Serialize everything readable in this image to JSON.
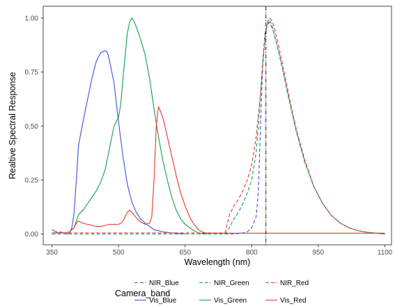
{
  "chart_data": {
    "type": "line",
    "title": "",
    "xlabel": "Wavelength (nm)",
    "ylabel": "Realtive Spectral Response",
    "xlim": [
      350,
      1100
    ],
    "ylim": [
      0,
      1.0
    ],
    "x_ticks": [
      350,
      500,
      650,
      800,
      950,
      1100
    ],
    "x_tick_labels": [
      "350",
      "500",
      "650",
      "800",
      "950",
      "1100"
    ],
    "y_ticks": [
      0,
      0.25,
      0.5,
      0.75,
      1.0
    ],
    "y_tick_labels": [
      "0.00",
      "0.25",
      "0.50",
      "0.75",
      "1.00"
    ],
    "grid": false,
    "vline": {
      "x": 832,
      "style": "dashdot",
      "color": "#000000"
    },
    "legend": {
      "title": "Camera_band",
      "position": "bottom"
    },
    "series": [
      {
        "name": "NIR_Blue",
        "color": "#3b4fe0",
        "linetype": "dashed",
        "x": [
          350,
          700,
          760,
          780,
          790,
          800,
          810,
          815,
          820,
          825,
          830,
          835,
          840,
          845,
          850,
          860,
          870,
          880,
          890,
          900,
          920,
          940,
          960,
          980,
          1000,
          1020,
          1040,
          1060,
          1080,
          1100
        ],
        "y": [
          0,
          0,
          0,
          0.005,
          0.01,
          0.03,
          0.08,
          0.2,
          0.5,
          0.8,
          0.93,
          0.97,
          0.98,
          0.96,
          0.93,
          0.85,
          0.76,
          0.66,
          0.57,
          0.48,
          0.33,
          0.22,
          0.14,
          0.085,
          0.05,
          0.028,
          0.015,
          0.008,
          0.004,
          0
        ]
      },
      {
        "name": "NIR_Green",
        "color": "#0e9d4f",
        "linetype": "dashed",
        "x": [
          350,
          740,
          750,
          760,
          770,
          780,
          790,
          800,
          810,
          815,
          820,
          825,
          830,
          835,
          840,
          845,
          850,
          860,
          870,
          880,
          890,
          900,
          920,
          940,
          960,
          980,
          1000,
          1020,
          1040,
          1060,
          1080,
          1100
        ],
        "y": [
          0,
          0,
          0.03,
          0.07,
          0.1,
          0.14,
          0.19,
          0.25,
          0.38,
          0.5,
          0.65,
          0.8,
          0.92,
          0.97,
          0.99,
          0.97,
          0.93,
          0.85,
          0.76,
          0.66,
          0.57,
          0.48,
          0.33,
          0.22,
          0.14,
          0.085,
          0.05,
          0.028,
          0.015,
          0.008,
          0.004,
          0
        ]
      },
      {
        "name": "NIR_Red",
        "color": "#e8342a",
        "linetype": "dashed",
        "x": [
          350,
          740,
          750,
          760,
          770,
          780,
          790,
          800,
          810,
          820,
          825,
          830,
          835,
          840,
          845,
          850,
          860,
          870,
          880,
          890,
          900,
          920,
          940,
          960,
          980,
          1000,
          1020,
          1040,
          1060,
          1080,
          1100
        ],
        "y": [
          0.005,
          0.005,
          0.09,
          0.13,
          0.16,
          0.2,
          0.25,
          0.32,
          0.45,
          0.65,
          0.78,
          0.9,
          0.98,
          1.0,
          0.99,
          0.96,
          0.88,
          0.78,
          0.68,
          0.58,
          0.49,
          0.34,
          0.22,
          0.14,
          0.085,
          0.05,
          0.028,
          0.015,
          0.008,
          0.004,
          0
        ]
      },
      {
        "name": "Vis_Blue",
        "color": "#3b4fe0",
        "linetype": "solid",
        "x": [
          350,
          360,
          365,
          370,
          375,
          380,
          385,
          390,
          395,
          400,
          405,
          410,
          420,
          430,
          440,
          450,
          460,
          465,
          470,
          475,
          480,
          490,
          500,
          510,
          520,
          530,
          540,
          550,
          560,
          570,
          580,
          600,
          620,
          650
        ],
        "y": [
          0.02,
          0.01,
          0.005,
          0.01,
          0.005,
          0.005,
          0.0,
          0.005,
          0.03,
          0.1,
          0.25,
          0.41,
          0.52,
          0.62,
          0.72,
          0.8,
          0.84,
          0.845,
          0.85,
          0.84,
          0.8,
          0.7,
          0.52,
          0.36,
          0.23,
          0.15,
          0.1,
          0.07,
          0.05,
          0.035,
          0.02,
          0.01,
          0.005,
          0
        ]
      },
      {
        "name": "Vis_Green",
        "color": "#0e9d4f",
        "linetype": "solid",
        "x": [
          350,
          380,
          390,
          400,
          410,
          420,
          430,
          440,
          450,
          460,
          470,
          480,
          490,
          500,
          505,
          510,
          520,
          525,
          530,
          535,
          540,
          545,
          550,
          560,
          570,
          580,
          590,
          600,
          610,
          620,
          630,
          640,
          650,
          660,
          670,
          680,
          690,
          700
        ],
        "y": [
          0.005,
          0.005,
          0.01,
          0.03,
          0.09,
          0.11,
          0.14,
          0.17,
          0.2,
          0.24,
          0.3,
          0.4,
          0.5,
          0.54,
          0.6,
          0.72,
          0.93,
          0.98,
          1.0,
          0.985,
          0.96,
          0.93,
          0.9,
          0.83,
          0.72,
          0.58,
          0.45,
          0.34,
          0.25,
          0.17,
          0.11,
          0.07,
          0.045,
          0.03,
          0.015,
          0.005,
          0.002,
          0
        ]
      },
      {
        "name": "Vis_Red",
        "color": "#e8342a",
        "linetype": "solid",
        "x": [
          350,
          380,
          390,
          400,
          405,
          410,
          420,
          430,
          440,
          450,
          460,
          470,
          480,
          490,
          500,
          505,
          510,
          520,
          525,
          530,
          540,
          550,
          560,
          570,
          575,
          580,
          585,
          590,
          600,
          610,
          620,
          630,
          640,
          650,
          660,
          670,
          680,
          690,
          700,
          1100
        ],
        "y": [
          0.005,
          0.005,
          0.01,
          0.03,
          0.05,
          0.06,
          0.05,
          0.045,
          0.04,
          0.035,
          0.035,
          0.04,
          0.045,
          0.045,
          0.045,
          0.05,
          0.06,
          0.1,
          0.11,
          0.1,
          0.075,
          0.055,
          0.045,
          0.05,
          0.08,
          0.25,
          0.5,
          0.59,
          0.54,
          0.45,
          0.36,
          0.27,
          0.19,
          0.13,
          0.08,
          0.045,
          0.02,
          0.008,
          0.004,
          0.004
        ]
      }
    ]
  }
}
